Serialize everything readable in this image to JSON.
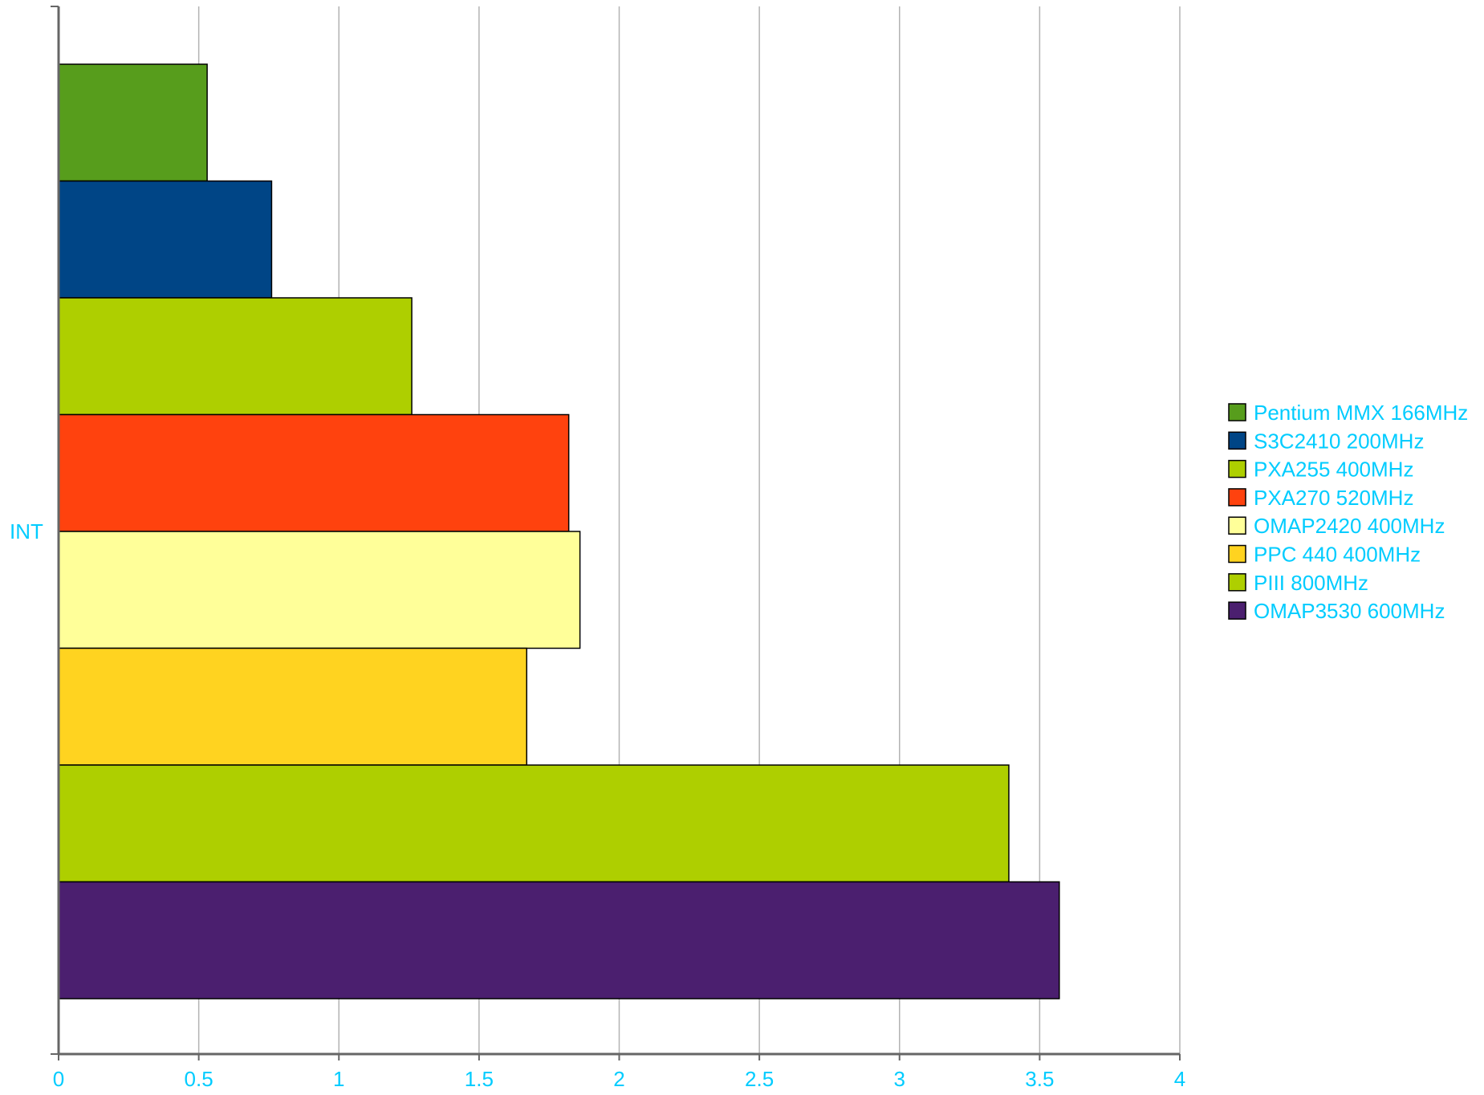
{
  "chart_data": {
    "type": "bar",
    "orientation": "horizontal",
    "categories": [
      "INT"
    ],
    "series": [
      {
        "name": "Pentium MMX 166MHz",
        "values": [
          0.53
        ],
        "color": "#579d1c"
      },
      {
        "name": "S3C2410 200MHz",
        "values": [
          0.76
        ],
        "color": "#004586"
      },
      {
        "name": "PXA255 400MHz",
        "values": [
          1.26
        ],
        "color": "#aecf00"
      },
      {
        "name": "PXA270 520MHz",
        "values": [
          1.82
        ],
        "color": "#ff420e"
      },
      {
        "name": "OMAP2420 400MHz",
        "values": [
          1.86
        ],
        "color": "#ffff99"
      },
      {
        "name": "PPC 440 400MHz",
        "values": [
          1.67
        ],
        "color": "#ffd320"
      },
      {
        "name": "PIII 800MHz",
        "values": [
          3.39
        ],
        "color": "#aecf00"
      },
      {
        "name": "OMAP3530 600MHz",
        "values": [
          3.57
        ],
        "color": "#4b1f6f"
      }
    ],
    "xlim": [
      0,
      4
    ],
    "xticks": [
      "0",
      "0.5",
      "1",
      "1.5",
      "2",
      "2.5",
      "3",
      "3.5",
      "4"
    ],
    "grid": true,
    "legend_position": "right",
    "title": "",
    "xlabel": "",
    "ylabel": ""
  }
}
